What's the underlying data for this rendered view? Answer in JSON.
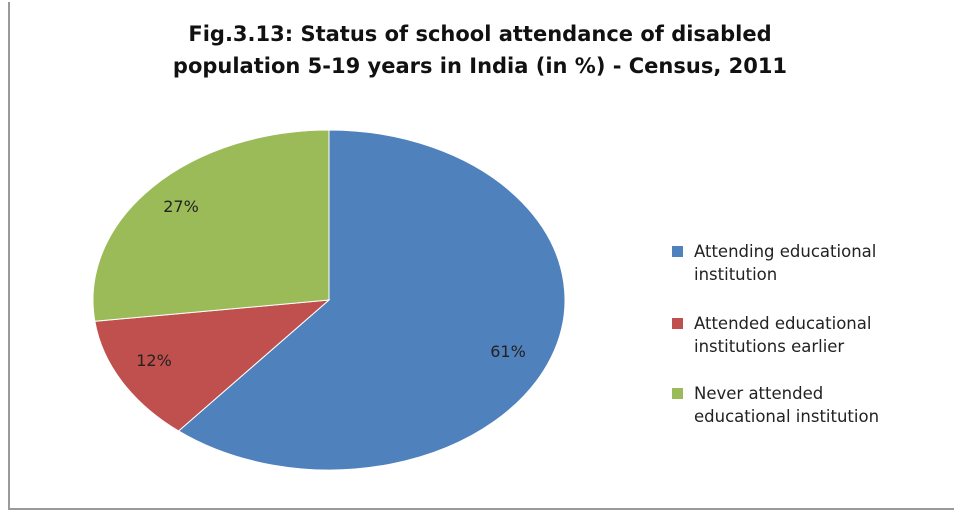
{
  "chart_data": {
    "type": "pie",
    "title_lines": [
      "Fig.3.13: Status of school attendance of disabled",
      "population 5-19 years in India (in %) - Census, 2011"
    ],
    "slices": [
      {
        "name_lines": [
          "Attending educational",
          "institution"
        ],
        "value": 61,
        "label": "61%",
        "color": "#4F81BD"
      },
      {
        "name_lines": [
          "Attended educational",
          "institutions earlier"
        ],
        "value": 12,
        "label": "12%",
        "color": "#C0504D"
      },
      {
        "name_lines": [
          "Never attended",
          "educational institution"
        ],
        "value": 27,
        "label": "27%",
        "color": "#9BBB59"
      }
    ],
    "legend_position": "right"
  }
}
